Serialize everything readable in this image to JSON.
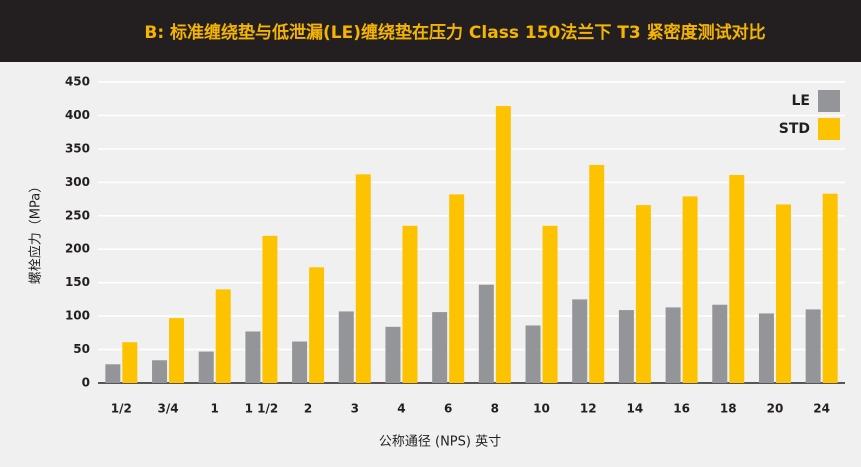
{
  "chart_data": {
    "type": "bar",
    "title": "B: 标准缠绕垫与低泄漏(LE)缠绕垫在压力 Class 150法兰下 T3 紧密度测试对比",
    "x_label": "公称通径 (NPS) 英寸",
    "y_label": "螺栓应力（MPa）",
    "categories": [
      "1/2",
      "3/4",
      "1",
      "1 1/2",
      "2",
      "3",
      "4",
      "6",
      "8",
      "10",
      "12",
      "14",
      "16",
      "18",
      "20",
      "24"
    ],
    "series": [
      {
        "name": "LE",
        "color": "#939598",
        "values": [
          28,
          34,
          47,
          77,
          62,
          107,
          84,
          106,
          147,
          86,
          125,
          109,
          113,
          117,
          104,
          110
        ]
      },
      {
        "name": "STD",
        "color": "#fdc300",
        "values": [
          61,
          97,
          140,
          220,
          173,
          312,
          235,
          282,
          414,
          235,
          326,
          266,
          279,
          311,
          267,
          283
        ]
      }
    ],
    "ylim": [
      0,
      450
    ],
    "yticks": [
      0,
      50,
      100,
      150,
      200,
      250,
      300,
      350,
      400,
      450
    ],
    "grid": true,
    "legend": "top-right"
  }
}
